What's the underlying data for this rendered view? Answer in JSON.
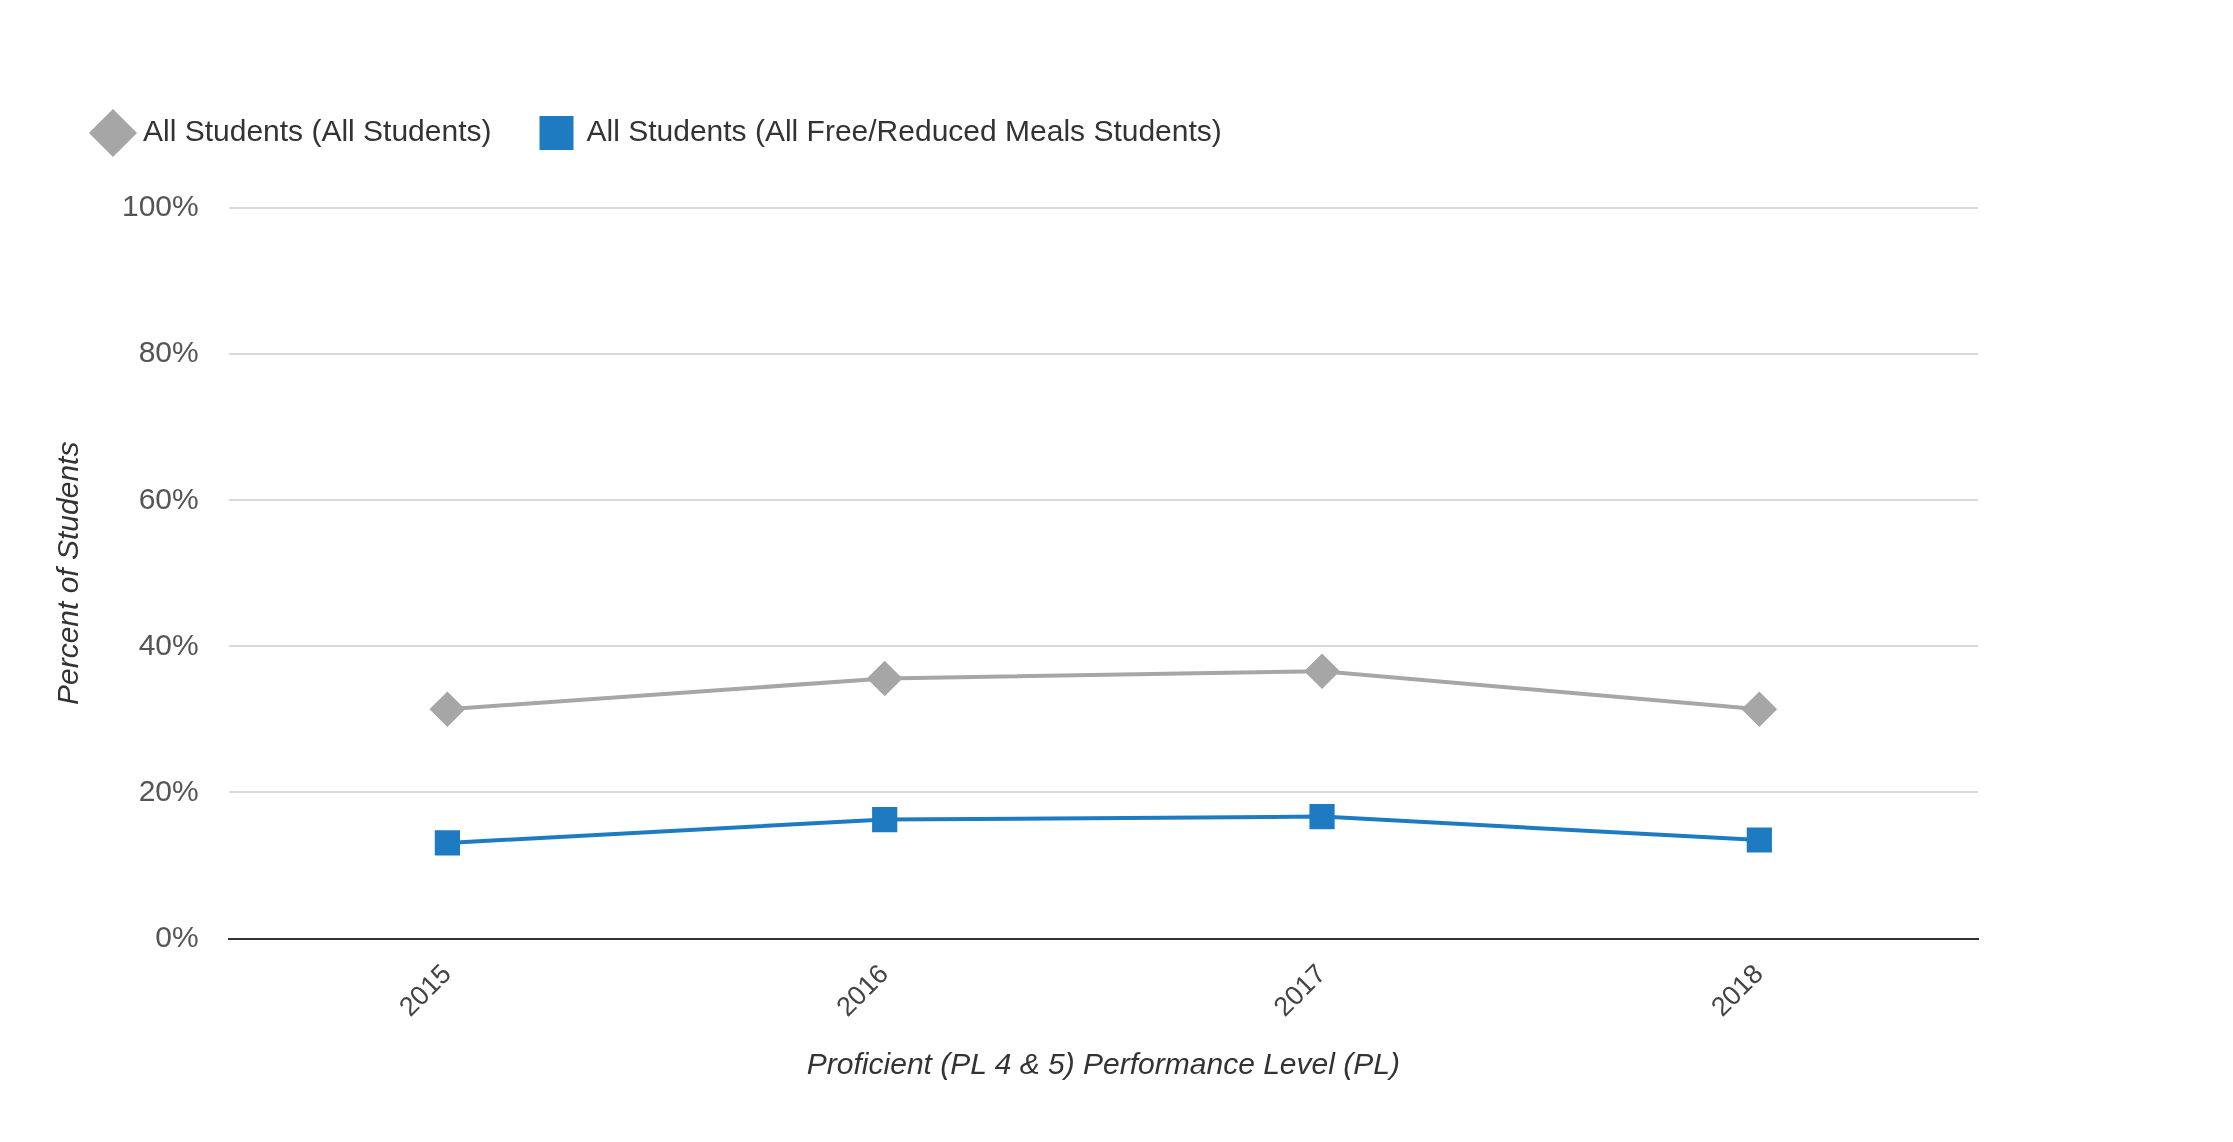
{
  "chart_data": {
    "type": "line",
    "xlabel": "Proficient (PL 4 & 5) Performance Level (PL)",
    "ylabel": "Percent of Students",
    "categories": [
      "2015",
      "2016",
      "2017",
      "2018"
    ],
    "series": [
      {
        "name": "All Students (All Students)",
        "color": "#a6a6a6",
        "marker": "diamond",
        "values": [
          31.4,
          35.6,
          36.6,
          31.4
        ]
      },
      {
        "name": "All Students (All Free/Reduced Meals Students)",
        "color": "#1f7bc1",
        "marker": "square",
        "values": [
          13.1,
          16.3,
          16.7,
          13.5
        ]
      }
    ],
    "ylim": [
      0,
      100
    ],
    "yticks": [
      {
        "value": 0,
        "label": "0%"
      },
      {
        "value": 20,
        "label": "20%"
      },
      {
        "value": 40,
        "label": "40%"
      },
      {
        "value": 60,
        "label": "60%"
      },
      {
        "value": 80,
        "label": "80%"
      },
      {
        "value": 100,
        "label": "100%"
      }
    ],
    "grid": "y",
    "legend": "top left",
    "line_style": "solid"
  }
}
